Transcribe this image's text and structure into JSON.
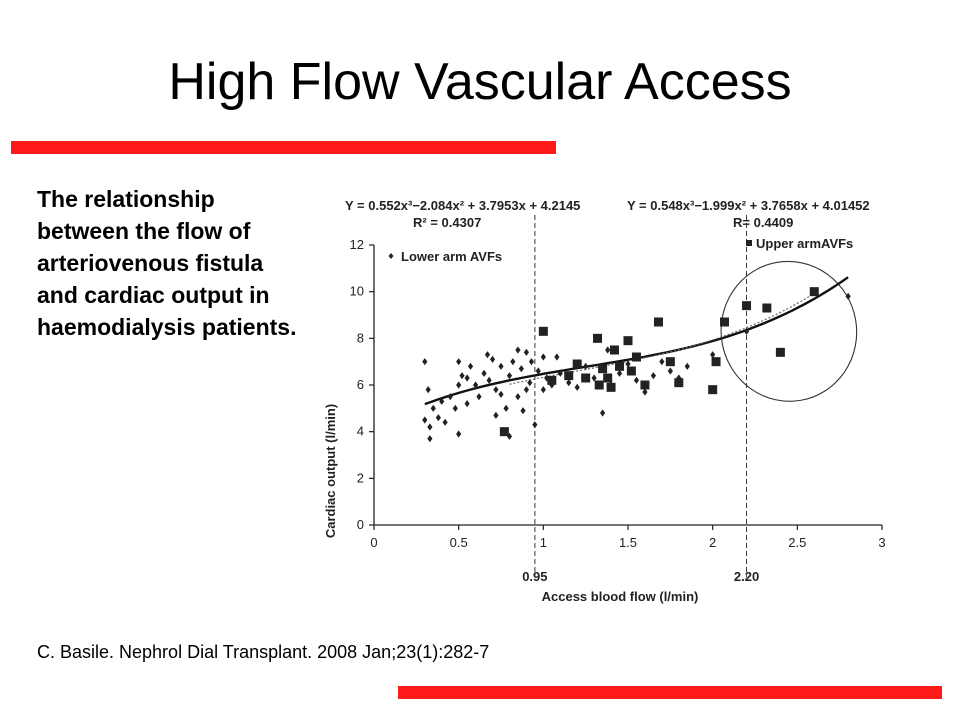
{
  "slide": {
    "title": "High Flow Vascular Access",
    "description": "The relationship between the flow of arteriovenous fistula and cardiac output in haemodialysis patients.",
    "citation": "C. Basile. Nephrol Dial Transplant. 2008 Jan;23(1):282-7",
    "accent_color": "#ff1a1a"
  },
  "chart_data": {
    "type": "scatter",
    "xlabel": "Access blood flow (l/min)",
    "ylabel": "Cardiac output (l/min)",
    "xlim": [
      0,
      3
    ],
    "ylim": [
      0,
      12
    ],
    "x_ticks": [
      0,
      0.5,
      1,
      1.5,
      2,
      2.5,
      3
    ],
    "x_tick_labels": [
      "0",
      "0.5",
      "1",
      "1.5",
      "2",
      "2.5",
      "3"
    ],
    "y_ticks": [
      0,
      2,
      4,
      6,
      8,
      10,
      12
    ],
    "y_tick_labels": [
      "0",
      "2",
      "4",
      "6",
      "8",
      "10",
      "12"
    ],
    "grid": false,
    "equation_left": "Y = 0.552x³−2.084x² + 3.7953x + 4.2145",
    "r2_left": "R² = 0.4307",
    "equation_right": "Y = 0.548x³−1.999x² + 3.7658x + 4.01452",
    "r2_right": "R= 0.4409",
    "thresholds": [
      {
        "x": 0.95,
        "label": "0.95"
      },
      {
        "x": 2.2,
        "label": "2.20"
      }
    ],
    "series": [
      {
        "name": "Lower arm AVFs",
        "marker": "diamond",
        "points": [
          [
            0.3,
            7.0
          ],
          [
            0.3,
            4.5
          ],
          [
            0.32,
            5.8
          ],
          [
            0.33,
            4.2
          ],
          [
            0.33,
            3.7
          ],
          [
            0.35,
            5.0
          ],
          [
            0.38,
            4.6
          ],
          [
            0.4,
            5.3
          ],
          [
            0.42,
            4.4
          ],
          [
            0.45,
            5.5
          ],
          [
            0.48,
            5.0
          ],
          [
            0.5,
            6.0
          ],
          [
            0.5,
            7.0
          ],
          [
            0.52,
            6.4
          ],
          [
            0.5,
            3.9
          ],
          [
            0.55,
            6.3
          ],
          [
            0.55,
            5.2
          ],
          [
            0.57,
            6.8
          ],
          [
            0.6,
            6.0
          ],
          [
            0.62,
            5.5
          ],
          [
            0.65,
            6.5
          ],
          [
            0.67,
            7.3
          ],
          [
            0.68,
            6.2
          ],
          [
            0.7,
            7.1
          ],
          [
            0.72,
            5.8
          ],
          [
            0.72,
            4.7
          ],
          [
            0.75,
            6.8
          ],
          [
            0.75,
            5.6
          ],
          [
            0.78,
            5.0
          ],
          [
            0.8,
            6.4
          ],
          [
            0.8,
            3.8
          ],
          [
            0.82,
            7.0
          ],
          [
            0.85,
            7.5
          ],
          [
            0.85,
            5.5
          ],
          [
            0.87,
            6.7
          ],
          [
            0.88,
            4.9
          ],
          [
            0.9,
            7.4
          ],
          [
            0.9,
            5.8
          ],
          [
            0.92,
            6.1
          ],
          [
            0.93,
            7.0
          ],
          [
            0.95,
            4.3
          ],
          [
            0.97,
            6.6
          ],
          [
            1.0,
            7.2
          ],
          [
            1.0,
            5.8
          ],
          [
            1.02,
            6.3
          ],
          [
            1.05,
            6.0
          ],
          [
            1.08,
            7.2
          ],
          [
            1.1,
            6.5
          ],
          [
            1.15,
            6.1
          ],
          [
            1.2,
            5.9
          ],
          [
            1.25,
            6.8
          ],
          [
            1.3,
            6.3
          ],
          [
            1.35,
            4.8
          ],
          [
            1.38,
            7.5
          ],
          [
            1.4,
            6.0
          ],
          [
            1.45,
            6.5
          ],
          [
            1.5,
            6.9
          ],
          [
            1.55,
            6.2
          ],
          [
            1.6,
            5.7
          ],
          [
            1.65,
            6.4
          ],
          [
            1.7,
            7.0
          ],
          [
            1.75,
            6.6
          ],
          [
            1.8,
            6.3
          ],
          [
            1.85,
            6.8
          ],
          [
            2.0,
            7.3
          ],
          [
            2.2,
            8.3
          ],
          [
            2.8,
            9.8
          ]
        ]
      },
      {
        "name": "Upper armAVFs",
        "marker": "square",
        "points": [
          [
            0.77,
            4.0
          ],
          [
            1.0,
            8.3
          ],
          [
            1.05,
            6.2
          ],
          [
            1.15,
            6.4
          ],
          [
            1.2,
            6.9
          ],
          [
            1.25,
            6.3
          ],
          [
            1.32,
            8.0
          ],
          [
            1.33,
            6.0
          ],
          [
            1.35,
            6.7
          ],
          [
            1.38,
            6.3
          ],
          [
            1.4,
            5.9
          ],
          [
            1.42,
            7.5
          ],
          [
            1.45,
            6.8
          ],
          [
            1.5,
            7.9
          ],
          [
            1.52,
            6.6
          ],
          [
            1.55,
            7.2
          ],
          [
            1.6,
            6.0
          ],
          [
            1.68,
            8.7
          ],
          [
            1.75,
            7.0
          ],
          [
            1.8,
            6.1
          ],
          [
            2.0,
            5.8
          ],
          [
            2.02,
            7.0
          ],
          [
            2.07,
            8.7
          ],
          [
            2.2,
            9.4
          ],
          [
            2.32,
            9.3
          ],
          [
            2.4,
            7.4
          ],
          [
            2.6,
            10.0
          ]
        ]
      }
    ],
    "fit_curves": [
      {
        "series": "Lower arm AVFs",
        "style": "solid",
        "coefficients": [
          0.552,
          -2.084,
          3.7953,
          4.2145
        ],
        "x_range": [
          0.3,
          2.8
        ]
      },
      {
        "series": "Upper armAVFs",
        "style": "dotted",
        "coefficients": [
          0.548,
          -1.999,
          3.7658,
          4.01452
        ],
        "x_range": [
          0.8,
          2.6
        ]
      }
    ],
    "highlight_ellipse": {
      "cx": 2.45,
      "cy": 8.3,
      "rx": 0.4,
      "ry": 3.0
    }
  }
}
